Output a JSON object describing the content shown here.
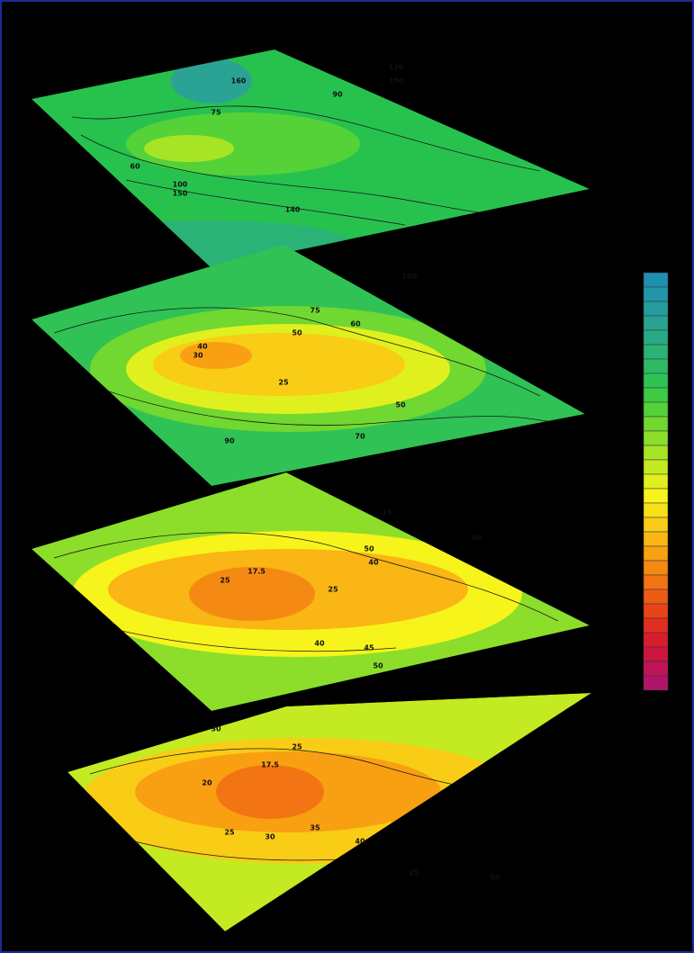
{
  "layers": [
    {
      "contour_labels": [
        "160",
        "120",
        "100",
        "90",
        "75",
        "60",
        "100",
        "150",
        "140"
      ]
    },
    {
      "contour_labels": [
        "100",
        "75",
        "60",
        "50",
        "40",
        "30",
        "25",
        "50",
        "70",
        "90"
      ]
    },
    {
      "contour_labels": [
        "75",
        "60",
        "50",
        "40",
        "25",
        "17.5",
        "25",
        "40",
        "45",
        "50"
      ]
    },
    {
      "contour_labels": [
        "30",
        "25",
        "17.5",
        "20",
        "25",
        "30",
        "35",
        "40",
        "25",
        "50"
      ]
    }
  ],
  "colorbar": {
    "colors": [
      "#1f8fb0",
      "#2296a8",
      "#259c9e",
      "#27a392",
      "#29aa84",
      "#2bb276",
      "#2dba66",
      "#30c254",
      "#3ccb42",
      "#55d238",
      "#70d830",
      "#8cde2a",
      "#a8e426",
      "#c4ea22",
      "#e0f01e",
      "#f6f41a",
      "#f8e018",
      "#f9cc16",
      "#f9b614",
      "#f8a012",
      "#f58a12",
      "#f27412",
      "#ee5c14",
      "#e84418",
      "#e22e20",
      "#d81c2c",
      "#cc1640",
      "#c01458",
      "#b0146a"
    ]
  }
}
